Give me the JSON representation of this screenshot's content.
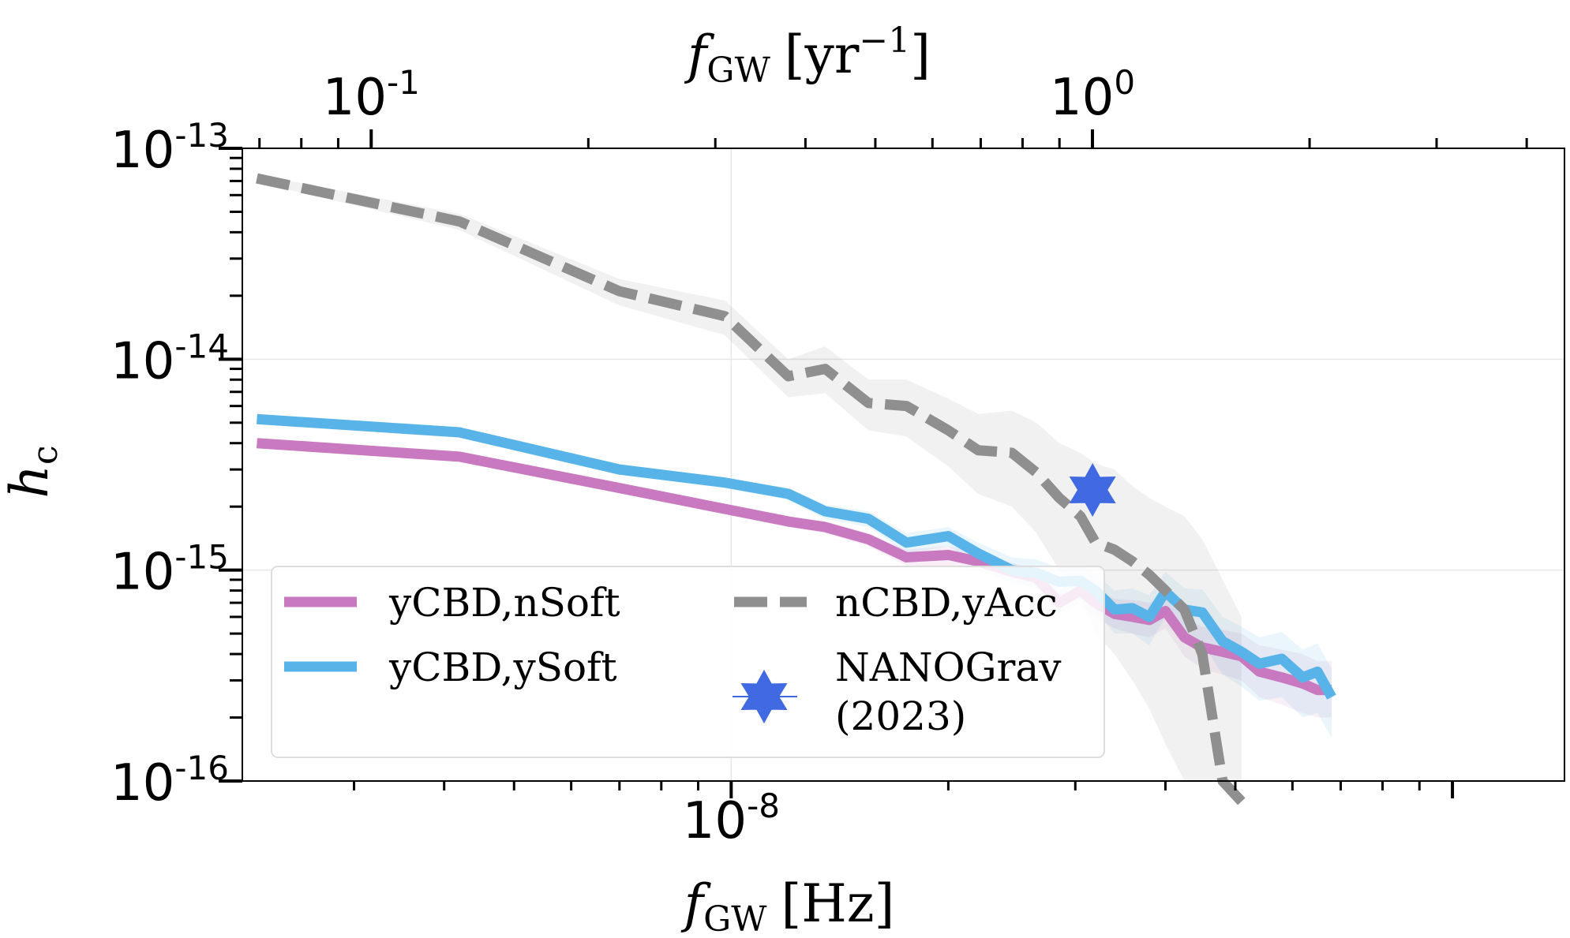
{
  "chart_data": {
    "type": "line",
    "xlabel": {
      "main": "f",
      "sub": "GW",
      "unit": "[Hz]"
    },
    "x2label": {
      "main": "f",
      "sub": "GW",
      "unit": "[yr",
      "unit_sup": "−1",
      "unit_close": "]"
    },
    "ylabel": {
      "main": "h",
      "sub": "c"
    },
    "xscale": "log",
    "yscale": "log",
    "xlim": [
      2.1e-09,
      1.43e-07
    ],
    "ylim": [
      1e-16,
      1e-13
    ],
    "x_major_ticks": [
      {
        "value": 1e-08,
        "base": "10",
        "exp": "-8"
      }
    ],
    "y_major_ticks": [
      {
        "value": 1e-13,
        "base": "10",
        "exp": "-13"
      },
      {
        "value": 1e-14,
        "base": "10",
        "exp": "-14"
      },
      {
        "value": 1e-15,
        "base": "10",
        "exp": "-15"
      },
      {
        "value": 1e-16,
        "base": "10",
        "exp": "-16"
      }
    ],
    "x2_major_ticks": [
      {
        "value": 0.1,
        "base": "10",
        "exp": "-1"
      },
      {
        "value": 1.0,
        "base": "10",
        "exp": "0"
      }
    ],
    "grid": true,
    "legend_position": "lower-left",
    "series": [
      {
        "name": "yCBD,nSoft",
        "color": "#c879c0",
        "style": "solid",
        "x": [
          2.2e-09,
          4.2e-09,
          7e-09,
          9.8e-09,
          1.2e-08,
          1.35e-08,
          1.55e-08,
          1.75e-08,
          2e-08,
          2.2e-08,
          2.45e-08,
          2.65e-08,
          2.85e-08,
          3.05e-08,
          3.2e-08,
          3.4e-08,
          3.6e-08,
          3.8e-08,
          4e-08,
          4.25e-08,
          4.5e-08,
          4.8e-08,
          5.1e-08,
          5.4e-08,
          5.8e-08,
          6.2e-08,
          6.5e-08,
          6.8e-08
        ],
        "y": [
          4e-15,
          3.45e-15,
          2.45e-15,
          1.95e-15,
          1.7e-15,
          1.6e-15,
          1.4e-15,
          1.15e-15,
          1.18e-15,
          1.1e-15,
          9.8e-16,
          9.2e-16,
          7e-16,
          8e-16,
          7e-16,
          6.2e-16,
          6e-16,
          5.8e-16,
          6.4e-16,
          4.8e-16,
          4.3e-16,
          4.1e-16,
          3.9e-16,
          3.3e-16,
          3.1e-16,
          2.9e-16,
          2.7e-16,
          2.7e-16
        ],
        "band_lower": [
          3.9e-15,
          3.35e-15,
          2.35e-15,
          1.85e-15,
          1.6e-15,
          1.5e-15,
          1.3e-15,
          1.05e-15,
          1.05e-15,
          1e-15,
          8.8e-16,
          8.2e-16,
          6.2e-16,
          7e-16,
          6e-16,
          5.3e-16,
          5e-16,
          4.8e-16,
          5.3e-16,
          3.9e-16,
          3.4e-16,
          3.2e-16,
          3e-16,
          2.5e-16,
          2.3e-16,
          2.1e-16,
          2e-16,
          2e-16
        ],
        "band_upper": [
          4.1e-15,
          3.55e-15,
          2.55e-15,
          2.05e-15,
          1.8e-15,
          1.7e-15,
          1.5e-15,
          1.25e-15,
          1.3e-15,
          1.22e-15,
          1.08e-15,
          1.02e-15,
          8e-16,
          9.2e-16,
          8.2e-16,
          7.3e-16,
          7.2e-16,
          7e-16,
          7.7e-16,
          5.9e-16,
          5.4e-16,
          5.2e-16,
          5e-16,
          4.4e-16,
          4.2e-16,
          4e-16,
          3.7e-16,
          3.7e-16
        ]
      },
      {
        "name": "yCBD,ySoft",
        "color": "#58b4e8",
        "style": "solid",
        "x": [
          2.2e-09,
          4.2e-09,
          7e-09,
          9.8e-09,
          1.2e-08,
          1.35e-08,
          1.55e-08,
          1.75e-08,
          2e-08,
          2.2e-08,
          2.45e-08,
          2.65e-08,
          2.85e-08,
          3.05e-08,
          3.2e-08,
          3.4e-08,
          3.6e-08,
          3.8e-08,
          4e-08,
          4.25e-08,
          4.5e-08,
          4.8e-08,
          5.1e-08,
          5.4e-08,
          5.8e-08,
          6.2e-08,
          6.5e-08,
          6.8e-08
        ],
        "y": [
          5.2e-15,
          4.5e-15,
          3e-15,
          2.6e-15,
          2.3e-15,
          1.9e-15,
          1.75e-15,
          1.35e-15,
          1.45e-15,
          1.2e-15,
          1e-15,
          9.7e-16,
          8.8e-16,
          8.9e-16,
          8e-16,
          6.5e-16,
          6.6e-16,
          6e-16,
          7.9e-16,
          6.5e-16,
          6.3e-16,
          4.6e-16,
          4.1e-16,
          3.6e-16,
          3.8e-16,
          3.1e-16,
          3.3e-16,
          2.5e-16
        ],
        "band_lower": [
          5e-15,
          4.3e-15,
          2.85e-15,
          2.45e-15,
          2.15e-15,
          1.75e-15,
          1.6e-15,
          1.2e-15,
          1.3e-15,
          1.05e-15,
          8.6e-16,
          8.2e-16,
          7.3e-16,
          7.3e-16,
          6.4e-16,
          5e-16,
          5e-16,
          4.4e-16,
          6e-16,
          4.8e-16,
          4.5e-16,
          3.2e-16,
          2.8e-16,
          2.4e-16,
          2.5e-16,
          2e-16,
          2.1e-16,
          1.6e-16
        ],
        "band_upper": [
          5.4e-15,
          4.7e-15,
          3.15e-15,
          2.75e-15,
          2.45e-15,
          2.05e-15,
          1.9e-15,
          1.5e-15,
          1.6e-15,
          1.35e-15,
          1.15e-15,
          1.12e-15,
          1.03e-15,
          1.05e-15,
          9.6e-16,
          8e-16,
          8.2e-16,
          7.6e-16,
          9.8e-16,
          8.2e-16,
          8.1e-16,
          6e-16,
          5.4e-16,
          4.8e-16,
          5.1e-16,
          4.2e-16,
          4.5e-16,
          3.4e-16
        ]
      },
      {
        "name": "nCBD,yAcc",
        "color": "#8f8f8f",
        "style": "dashed",
        "x": [
          2.2e-09,
          4.2e-09,
          7e-09,
          9.8e-09,
          1.2e-08,
          1.35e-08,
          1.55e-08,
          1.75e-08,
          2e-08,
          2.2e-08,
          2.45e-08,
          2.65e-08,
          2.85e-08,
          3.05e-08,
          3.2e-08,
          3.4e-08,
          3.6e-08,
          3.8e-08,
          4e-08,
          4.25e-08,
          4.5e-08,
          4.8e-08,
          5.1e-08
        ],
        "y": [
          7.2e-14,
          4.5e-14,
          2.1e-14,
          1.6e-14,
          8.3e-15,
          9e-15,
          6.2e-15,
          6e-15,
          4.6e-15,
          3.7e-15,
          3.6e-15,
          2.9e-15,
          2.2e-15,
          1.8e-15,
          1.35e-15,
          1.25e-15,
          1.1e-15,
          9.5e-16,
          8e-16,
          6.5e-16,
          4e-16,
          1e-16,
          8e-17
        ],
        "band_lower": [
          6.9e-14,
          4.1e-14,
          1.8e-14,
          1.3e-14,
          6.6e-15,
          6.9e-15,
          4.6e-15,
          4.3e-15,
          3.1e-15,
          2.3e-15,
          2e-15,
          1.5e-15,
          1e-15,
          7.5e-16,
          5e-16,
          4e-16,
          3e-16,
          2.2e-16,
          1.5e-16,
          1e-16,
          1e-16,
          1e-16,
          1e-16
        ],
        "band_upper": [
          7.5e-14,
          4.9e-14,
          2.4e-14,
          1.9e-14,
          1e-14,
          1.15e-14,
          8e-15,
          8e-15,
          6.5e-15,
          5.5e-15,
          5.7e-15,
          5e-15,
          4e-15,
          3.6e-15,
          3.2e-15,
          3e-15,
          2.5e-15,
          2.2e-15,
          2e-15,
          1.8e-15,
          1.4e-15,
          9e-16,
          6e-16
        ]
      }
    ],
    "observation": {
      "name": "NANOGrav (2023)",
      "color": "#4169e1",
      "marker": "star",
      "x": 3.17e-08,
      "y": 2.4e-15
    }
  }
}
